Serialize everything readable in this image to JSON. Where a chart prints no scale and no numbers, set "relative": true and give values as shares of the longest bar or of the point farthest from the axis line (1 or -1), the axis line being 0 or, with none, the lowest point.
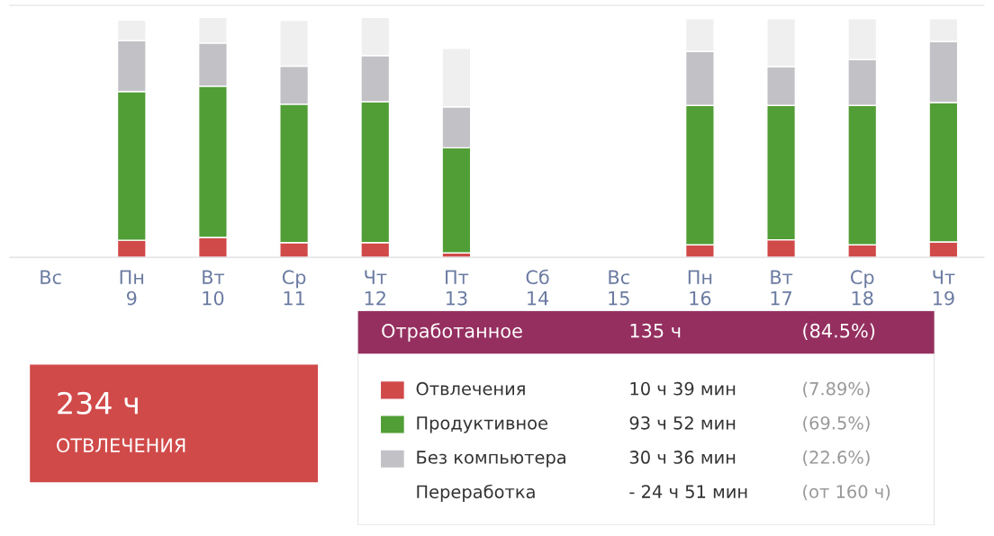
{
  "chart_data": [
    {
      "type": "bar",
      "stacked": true,
      "relative": true,
      "tick_labels": "x",
      "legend": "bottom right",
      "categories": [
        "Вс",
        "Пн\n9",
        "Вт\n10",
        "Ср\n11",
        "Чт\n12",
        "Пт\n13",
        "Сб\n14",
        "Вс\n15",
        "Пн\n16",
        "Вт\n17",
        "Ср\n18",
        "Чт\n19"
      ],
      "series": [
        {
          "name": "Отвлечения",
          "color": "#d04a4a",
          "values": [
            null,
            0.071,
            0.083,
            0.061,
            0.061,
            0.018,
            null,
            null,
            0.052,
            0.073,
            0.052,
            0.064
          ]
        },
        {
          "name": "Продуктивное",
          "color": "#529e36",
          "values": [
            null,
            0.62,
            0.63,
            0.577,
            0.587,
            0.438,
            null,
            null,
            0.581,
            0.56,
            0.581,
            0.581
          ]
        },
        {
          "name": "Без компьютера",
          "color": "#c2c1c6",
          "values": [
            null,
            0.212,
            0.18,
            0.159,
            0.193,
            0.171,
            null,
            null,
            0.225,
            0.161,
            0.191,
            0.254
          ]
        },
        {
          "color": "#efefef",
          "values": [
            null,
            0.086,
            0.107,
            0.191,
            0.159,
            0.244,
            null,
            null,
            0.136,
            0.2,
            0.17,
            0.095
          ]
        }
      ]
    },
    {
      "type": "other",
      "title": "Отработанное",
      "annotations": [
        "135 ч",
        "(84.5%)",
        "10 ч 39 мин",
        "(7.89%)",
        "93 ч 52 мин",
        "(69.5%)",
        "30 ч 36 мин",
        "(22.6%)",
        "Переработка",
        "- 24 ч 51 мин",
        "(от 160 ч)"
      ]
    },
    {
      "type": "other",
      "color": "#d04a4a",
      "annotations": [
        "234 ч",
        "ОТВЛЕЧЕНИЯ"
      ]
    }
  ]
}
